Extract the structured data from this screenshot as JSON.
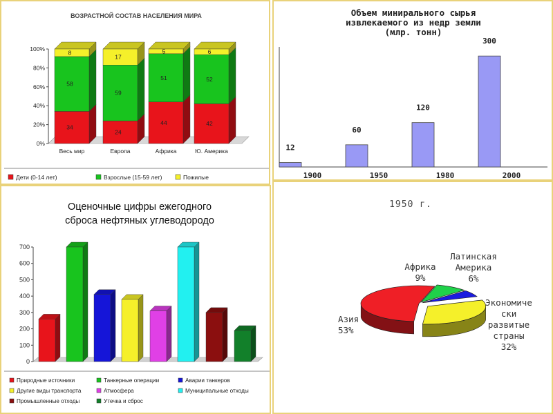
{
  "panels": {
    "age": {
      "title": "ВОЗРАСТНОЙ СОСТАВ НАСЕЛЕНИЯ МИРА",
      "chart_data": {
        "type": "bar",
        "stacked": true,
        "percent": true,
        "categories": [
          "Весь мир",
          "Европа",
          "Африка",
          "Ю. Америка"
        ],
        "y_ticks": [
          "0%",
          "20%",
          "40%",
          "60%",
          "80%",
          "100%"
        ],
        "ylim": [
          0,
          100
        ],
        "series": [
          {
            "name": "Дети (0-14 лет)",
            "color": "#e8141b",
            "values": [
              34,
              24,
              44,
              42
            ]
          },
          {
            "name": "Взрослые (15-59 лет)",
            "color": "#18c41e",
            "values": [
              58,
              59,
              51,
              52
            ]
          },
          {
            "name": "Пожилые",
            "color": "#f5f02a",
            "values": [
              8,
              17,
              5,
              6
            ]
          }
        ],
        "legend_position": "bottom"
      }
    },
    "minerals": {
      "title_lines": [
        "Объем минирального сырья",
        "извлекаемого из недр земли",
        "(млр. тонн)"
      ],
      "chart_data": {
        "type": "bar",
        "categories": [
          "1900",
          "1950",
          "1980",
          "2000"
        ],
        "values": [
          12,
          60,
          120,
          300
        ],
        "value_labels": [
          "12",
          "60",
          "120",
          "300"
        ],
        "color": "#9999f5",
        "ylim": [
          0,
          360
        ]
      }
    },
    "oil": {
      "title_lines": [
        "Оценочные цифры ежегодного",
        "сброса нефтяных углеводородо"
      ],
      "chart_data": {
        "type": "bar",
        "y_ticks": [
          "0",
          "100",
          "200",
          "300",
          "400",
          "500",
          "600",
          "700"
        ],
        "ylim": [
          0,
          700
        ],
        "series": [
          {
            "name": "Природные источники",
            "color": "#e8141b",
            "value": 260
          },
          {
            "name": "Танкерные операции",
            "color": "#18c41e",
            "value": 700
          },
          {
            "name": "Аварии танкеров",
            "color": "#1515d8",
            "value": 410
          },
          {
            "name": "Другие виды транспорта",
            "color": "#f5f02a",
            "value": 380
          },
          {
            "name": "Атмосфера",
            "color": "#e040e6",
            "value": 310
          },
          {
            "name": "Муниципальные отходы",
            "color": "#22f0f0",
            "value": 700
          },
          {
            "name": "Промышленные отходы",
            "color": "#8b0f0f",
            "value": 300
          },
          {
            "name": "Утечка и сброс",
            "color": "#12802a",
            "value": 190
          }
        ],
        "legend_position": "bottom"
      }
    },
    "pie1950": {
      "title": "1950 г.",
      "chart_data": {
        "type": "pie",
        "three_d": true,
        "slices": [
          {
            "label_lines": [
              "Азия",
              "53%"
            ],
            "value": 53,
            "color": "#ef1f26"
          },
          {
            "label_lines": [
              "Африка",
              "9%"
            ],
            "value": 9,
            "color": "#1fd24a"
          },
          {
            "label_lines": [
              "Латинская",
              "Америка",
              "6%"
            ],
            "value": 6,
            "color": "#1b1be0"
          },
          {
            "label_lines": [
              "Экономиче",
              "ски",
              "развитые",
              "страны",
              "32%"
            ],
            "value": 32,
            "color": "#f5f02a"
          }
        ]
      }
    }
  }
}
